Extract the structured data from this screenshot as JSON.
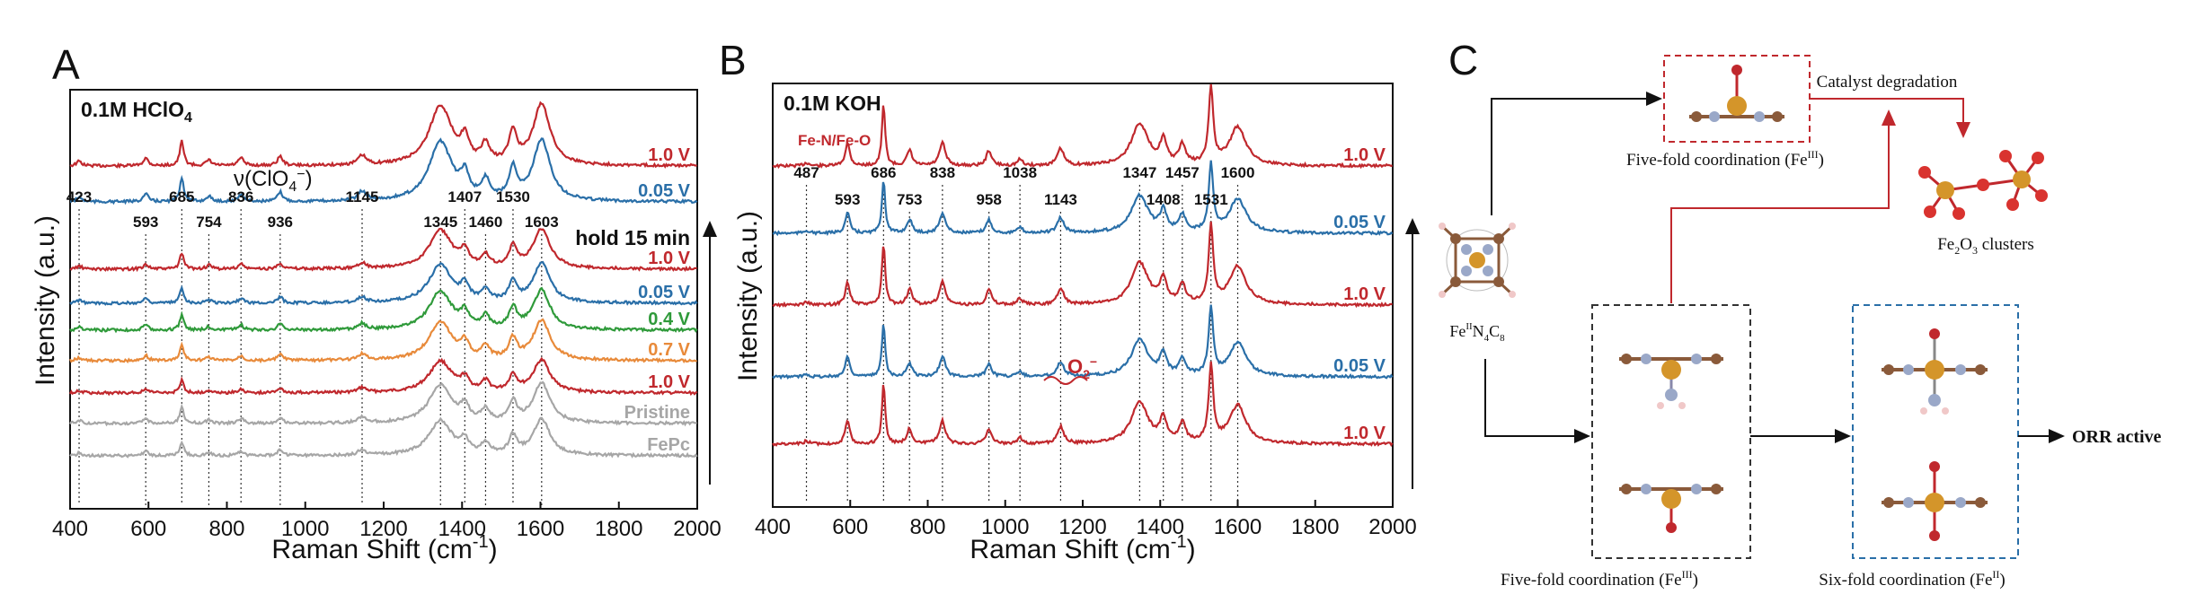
{
  "colors": {
    "red": "#c0282d",
    "blue": "#2a6fa8",
    "green": "#2f9a3a",
    "orange": "#e88a3a",
    "gray": "#a6a6a6",
    "text": "#111111"
  },
  "panels": {
    "a_label": "A",
    "b_label": "B",
    "c_label": "C"
  },
  "chart_data": [
    {
      "type": "line",
      "panel": "A",
      "condition_prefix": "0.1M HClO",
      "condition_sub": "4",
      "xlabel_main": "Raman Shift (cm",
      "xlabel_sup": "-1",
      "xlabel_end": ")",
      "ylabel": "Intensity (a.u.)",
      "xlim": [
        400,
        2000
      ],
      "xticks": [
        "400",
        "600",
        "800",
        "1000",
        "1200",
        "1400",
        "1600",
        "1800",
        "2000"
      ],
      "annotation_perchlorate": "ν(ClO",
      "annotation_perchlorate_sup": "4",
      "annotation_perchlorate_sup2": "−",
      "annotation_perchlorate_end": ")",
      "hold_label": "hold 15 min",
      "peak_labels": [
        {
          "x": 423,
          "label": "423",
          "highlight": false
        },
        {
          "x": 593,
          "label": "593",
          "highlight": true
        },
        {
          "x": 685,
          "label": "685",
          "highlight": false
        },
        {
          "x": 754,
          "label": "754",
          "highlight": false
        },
        {
          "x": 836,
          "label": "836",
          "highlight": false
        },
        {
          "x": 936,
          "label": "936",
          "highlight": false
        },
        {
          "x": 1145,
          "label": "1145",
          "highlight": false
        },
        {
          "x": 1345,
          "label": "1345",
          "highlight": false
        },
        {
          "x": 1407,
          "label": "1407",
          "highlight": false
        },
        {
          "x": 1460,
          "label": "1460",
          "highlight": false
        },
        {
          "x": 1530,
          "label": "1530",
          "highlight": false
        },
        {
          "x": 1603,
          "label": "1603",
          "highlight": false
        }
      ],
      "series": [
        {
          "label": "1.0 V",
          "color": "red"
        },
        {
          "label": "0.05 V",
          "color": "blue"
        },
        {
          "label": "1.0 V",
          "color": "red"
        },
        {
          "label": "0.05 V",
          "color": "blue"
        },
        {
          "label": "0.4 V",
          "color": "green"
        },
        {
          "label": "0.7 V",
          "color": "orange"
        },
        {
          "label": "1.0 V",
          "color": "red"
        },
        {
          "label": "Pristine",
          "color": "gray"
        },
        {
          "label": "FePc",
          "color": "gray"
        }
      ]
    },
    {
      "type": "line",
      "panel": "B",
      "condition": "0.1M KOH",
      "fe_label": "Fe-N/Fe-O",
      "xlabel_main": "Raman Shift (cm",
      "xlabel_sup": "-1",
      "xlabel_end": ")",
      "ylabel": "Intensity (a.u.)",
      "xlim": [
        400,
        2000
      ],
      "xticks": [
        "400",
        "600",
        "800",
        "1000",
        "1200",
        "1400",
        "1600",
        "1800",
        "2000"
      ],
      "o2_label": "O",
      "o2_sub": "2",
      "o2_sup": "−",
      "peak_labels": [
        {
          "x": 487,
          "label": "487",
          "highlight": false
        },
        {
          "x": 593,
          "label": "593",
          "highlight": true
        },
        {
          "x": 686,
          "label": "686",
          "highlight": false
        },
        {
          "x": 753,
          "label": "753",
          "highlight": false
        },
        {
          "x": 838,
          "label": "838",
          "highlight": false
        },
        {
          "x": 958,
          "label": "958",
          "highlight": false
        },
        {
          "x": 1038,
          "label": "1038",
          "highlight": false
        },
        {
          "x": 1143,
          "label": "1143",
          "highlight": false
        },
        {
          "x": 1347,
          "label": "1347",
          "highlight": false
        },
        {
          "x": 1408,
          "label": "1408",
          "highlight": false
        },
        {
          "x": 1457,
          "label": "1457",
          "highlight": false
        },
        {
          "x": 1531,
          "label": "1531",
          "highlight": false
        },
        {
          "x": 1600,
          "label": "1600",
          "highlight": false
        }
      ],
      "series": [
        {
          "label": "1.0 V",
          "color": "red"
        },
        {
          "label": "0.05 V",
          "color": "blue"
        },
        {
          "label": "1.0 V",
          "color": "red"
        },
        {
          "label": "0.05 V",
          "color": "blue"
        },
        {
          "label": "1.0 V",
          "color": "red"
        }
      ]
    }
  ],
  "diagram": {
    "catalyst_degradation": "Catalyst degradation",
    "five_fold_top_a": "Five-fold coordination (Fe",
    "five_fold_top_sup": "III",
    "five_fold_top_b": ")",
    "fe2o3_a": "Fe",
    "fe2o3_s1": "2",
    "fe2o3_b": "O",
    "fe2o3_s2": "3",
    "fe2o3_c": " clusters",
    "fen4c8_a": "Fe",
    "fen4c8_s1": "II",
    "fen4c8_b": "N",
    "fen4c8_s2": "4",
    "fen4c8_c": "C",
    "fen4c8_s3": "8",
    "five_fold_bottom_a": "Five-fold coordination (Fe",
    "five_fold_bottom_sup": "III",
    "five_fold_bottom_b": ")",
    "six_fold_a": "Six-fold coordination (Fe",
    "six_fold_sup": "II",
    "six_fold_b": ")",
    "orr_active": "ORR active"
  }
}
